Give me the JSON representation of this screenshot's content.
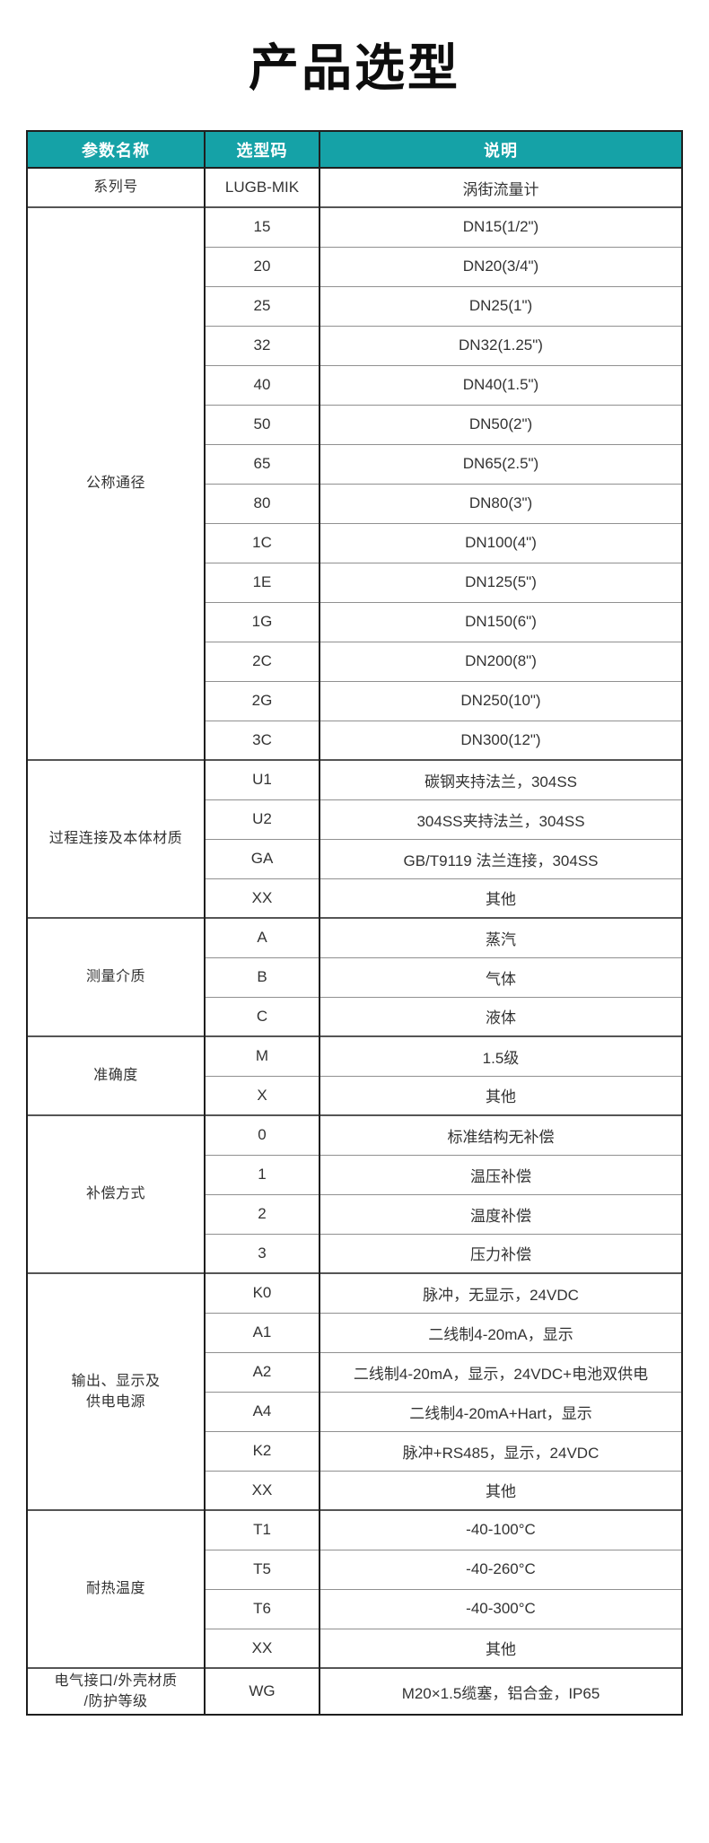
{
  "theme": {
    "accent": "#15A2A7",
    "header_text": "#FFFFFF",
    "body_text": "#333333",
    "border_dark": "#1F1F1F",
    "border_group": "#555555",
    "border_row": "#909090"
  },
  "page": {
    "title": "产品选型"
  },
  "table": {
    "columns": [
      "参数名称",
      "选型码",
      "说明"
    ],
    "groups": [
      {
        "name": "系列号",
        "rows": [
          {
            "code": "LUGB-MIK",
            "desc": "涡街流量计"
          }
        ]
      },
      {
        "name": "公称通径",
        "rows": [
          {
            "code": "15",
            "desc": "DN15(1/2\")"
          },
          {
            "code": "20",
            "desc": "DN20(3/4\")"
          },
          {
            "code": "25",
            "desc": "DN25(1\")"
          },
          {
            "code": "32",
            "desc": "DN32(1.25\")"
          },
          {
            "code": "40",
            "desc": "DN40(1.5\")"
          },
          {
            "code": "50",
            "desc": "DN50(2\")"
          },
          {
            "code": "65",
            "desc": "DN65(2.5\")"
          },
          {
            "code": "80",
            "desc": "DN80(3\")"
          },
          {
            "code": "1C",
            "desc": "DN100(4\")"
          },
          {
            "code": "1E",
            "desc": "DN125(5\")"
          },
          {
            "code": "1G",
            "desc": "DN150(6\")"
          },
          {
            "code": "2C",
            "desc": "DN200(8\")"
          },
          {
            "code": "2G",
            "desc": "DN250(10\")"
          },
          {
            "code": "3C",
            "desc": "DN300(12\")"
          }
        ]
      },
      {
        "name": "过程连接及本体材质",
        "rows": [
          {
            "code": "U1",
            "desc": "碳钢夹持法兰，304SS"
          },
          {
            "code": "U2",
            "desc": "304SS夹持法兰，304SS"
          },
          {
            "code": "GA",
            "desc": "GB/T9119 法兰连接，304SS"
          },
          {
            "code": "XX",
            "desc": "其他"
          }
        ]
      },
      {
        "name": "测量介质",
        "rows": [
          {
            "code": "A",
            "desc": "蒸汽"
          },
          {
            "code": "B",
            "desc": "气体"
          },
          {
            "code": "C",
            "desc": "液体"
          }
        ]
      },
      {
        "name": "准确度",
        "rows": [
          {
            "code": "M",
            "desc": "1.5级"
          },
          {
            "code": "X",
            "desc": "其他"
          }
        ]
      },
      {
        "name": "补偿方式",
        "rows": [
          {
            "code": "0",
            "desc": "标准结构无补偿"
          },
          {
            "code": "1",
            "desc": "温压补偿"
          },
          {
            "code": "2",
            "desc": "温度补偿"
          },
          {
            "code": "3",
            "desc": "压力补偿"
          }
        ]
      },
      {
        "name": "输出、显示及\n供电电源",
        "rows": [
          {
            "code": "K0",
            "desc": "脉冲，无显示，24VDC"
          },
          {
            "code": "A1",
            "desc": "二线制4-20mA，显示"
          },
          {
            "code": "A2",
            "desc": "二线制4-20mA，显示，24VDC+电池双供电"
          },
          {
            "code": "A4",
            "desc": "二线制4-20mA+Hart，显示"
          },
          {
            "code": "K2",
            "desc": "脉冲+RS485，显示，24VDC"
          },
          {
            "code": "XX",
            "desc": "其他"
          }
        ]
      },
      {
        "name": "耐热温度",
        "rows": [
          {
            "code": "T1",
            "desc": "-40-100°C"
          },
          {
            "code": "T5",
            "desc": "-40-260°C"
          },
          {
            "code": "T6",
            "desc": "-40-300°C"
          },
          {
            "code": "XX",
            "desc": "其他"
          }
        ]
      },
      {
        "name": "电气接口/外壳材质\n/防护等级",
        "rows": [
          {
            "code": "WG",
            "desc": "M20×1.5缆塞，铝合金，IP65"
          }
        ]
      }
    ]
  }
}
